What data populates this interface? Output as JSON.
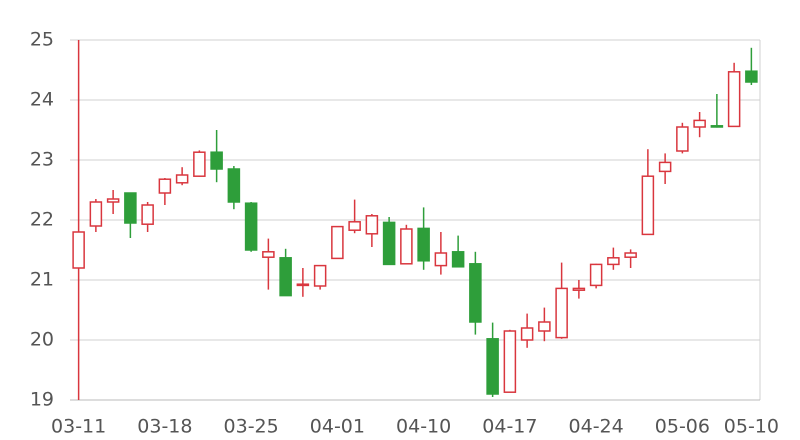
{
  "chart_data": {
    "type": "candlestick",
    "categories": [
      "03-11",
      null,
      null,
      null,
      null,
      "03-18",
      null,
      null,
      null,
      null,
      "03-25",
      null,
      null,
      null,
      null,
      "04-01",
      null,
      null,
      null,
      null,
      "04-10",
      null,
      null,
      null,
      null,
      "04-17",
      null,
      null,
      null,
      null,
      "04-24",
      null,
      null,
      null,
      null,
      "05-06",
      null,
      null,
      null,
      "05-10"
    ],
    "open": [
      21.2,
      21.9,
      22.3,
      22.45,
      21.93,
      22.45,
      22.62,
      22.73,
      23.13,
      22.85,
      22.28,
      21.38,
      21.37,
      20.91,
      20.9,
      21.36,
      21.83,
      21.77,
      21.96,
      21.27,
      21.86,
      21.24,
      21.47,
      21.27,
      20.02,
      19.13,
      20.0,
      20.15,
      20.04,
      20.83,
      20.91,
      21.26,
      21.38,
      21.76,
      22.81,
      23.15,
      23.55,
      23.57,
      23.56,
      24.48
    ],
    "high": [
      25.0,
      22.35,
      22.5,
      22.45,
      22.3,
      22.7,
      22.88,
      23.16,
      23.5,
      22.9,
      22.3,
      21.69,
      21.52,
      21.2,
      21.25,
      21.9,
      22.34,
      22.1,
      22.05,
      21.92,
      22.21,
      21.8,
      21.74,
      21.47,
      20.29,
      20.17,
      20.44,
      20.54,
      21.29,
      21.0,
      21.27,
      21.54,
      21.51,
      23.18,
      23.11,
      23.62,
      23.8,
      24.1,
      24.62,
      24.87
    ],
    "low": [
      19.0,
      21.8,
      22.1,
      21.7,
      21.8,
      22.25,
      22.58,
      22.72,
      22.63,
      22.18,
      21.47,
      20.84,
      20.74,
      20.72,
      20.84,
      21.35,
      21.78,
      21.55,
      21.26,
      21.26,
      21.17,
      21.09,
      21.22,
      20.09,
      19.05,
      19.13,
      19.87,
      19.98,
      20.02,
      20.69,
      20.86,
      21.17,
      21.2,
      21.76,
      22.6,
      23.11,
      23.38,
      23.54,
      23.56,
      24.25
    ],
    "close": [
      21.8,
      22.3,
      22.35,
      21.95,
      22.25,
      22.68,
      22.75,
      23.13,
      22.85,
      22.3,
      21.5,
      21.47,
      20.74,
      20.93,
      21.24,
      21.89,
      21.97,
      22.07,
      21.26,
      21.85,
      21.32,
      21.45,
      21.22,
      20.3,
      19.1,
      20.15,
      20.2,
      20.3,
      20.86,
      20.86,
      21.26,
      21.37,
      21.45,
      22.73,
      22.96,
      23.55,
      23.66,
      23.55,
      24.47,
      24.3
    ],
    "up_color": "#d9363e",
    "down_color": "#2e9e3a",
    "ylim": [
      19,
      25
    ],
    "yticks": [
      19,
      20,
      21,
      22,
      23,
      24,
      25
    ],
    "grid": true
  }
}
